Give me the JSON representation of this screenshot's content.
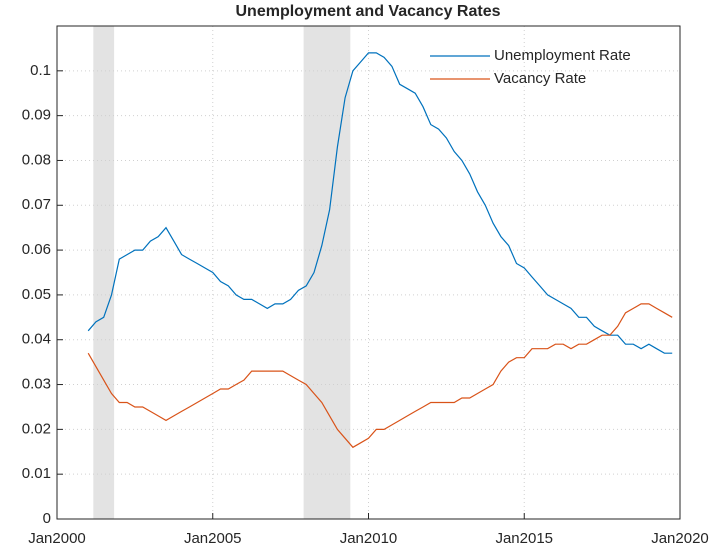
{
  "chart_data": {
    "type": "line",
    "title": "Unemployment and Vacancy Rates",
    "x": [
      "2001-01",
      "2001-04",
      "2001-07",
      "2001-10",
      "2002-01",
      "2002-04",
      "2002-07",
      "2002-10",
      "2003-01",
      "2003-04",
      "2003-07",
      "2003-10",
      "2004-01",
      "2004-04",
      "2004-07",
      "2004-10",
      "2005-01",
      "2005-04",
      "2005-07",
      "2005-10",
      "2006-01",
      "2006-04",
      "2006-07",
      "2006-10",
      "2007-01",
      "2007-04",
      "2007-07",
      "2007-10",
      "2008-01",
      "2008-04",
      "2008-07",
      "2008-10",
      "2009-01",
      "2009-04",
      "2009-07",
      "2009-10",
      "2010-01",
      "2010-04",
      "2010-07",
      "2010-10",
      "2011-01",
      "2011-04",
      "2011-07",
      "2011-10",
      "2012-01",
      "2012-04",
      "2012-07",
      "2012-10",
      "2013-01",
      "2013-04",
      "2013-07",
      "2013-10",
      "2014-01",
      "2014-04",
      "2014-07",
      "2014-10",
      "2015-01",
      "2015-04",
      "2015-07",
      "2015-10",
      "2016-01",
      "2016-04",
      "2016-07",
      "2016-10",
      "2017-01",
      "2017-04",
      "2017-07",
      "2017-10",
      "2018-01",
      "2018-04",
      "2018-07",
      "2018-10",
      "2019-01",
      "2019-04",
      "2019-07",
      "2019-10"
    ],
    "series": [
      {
        "name": "Unemployment Rate",
        "color": "#0072bd",
        "values": [
          0.042,
          0.044,
          0.045,
          0.05,
          0.058,
          0.059,
          0.06,
          0.06,
          0.062,
          0.063,
          0.065,
          0.062,
          0.059,
          0.058,
          0.057,
          0.056,
          0.055,
          0.053,
          0.052,
          0.05,
          0.049,
          0.049,
          0.048,
          0.047,
          0.048,
          0.048,
          0.049,
          0.051,
          0.052,
          0.055,
          0.061,
          0.069,
          0.083,
          0.094,
          0.1,
          0.102,
          0.104,
          0.104,
          0.103,
          0.101,
          0.097,
          0.096,
          0.095,
          0.092,
          0.088,
          0.087,
          0.085,
          0.082,
          0.08,
          0.077,
          0.073,
          0.07,
          0.066,
          0.063,
          0.061,
          0.057,
          0.056,
          0.054,
          0.052,
          0.05,
          0.049,
          0.048,
          0.047,
          0.045,
          0.045,
          0.043,
          0.042,
          0.041,
          0.041,
          0.039,
          0.039,
          0.038,
          0.039,
          0.038,
          0.037,
          0.037
        ]
      },
      {
        "name": "Vacancy Rate",
        "color": "#d95319",
        "values": [
          0.037,
          0.034,
          0.031,
          0.028,
          0.026,
          0.026,
          0.025,
          0.025,
          0.024,
          0.023,
          0.022,
          0.023,
          0.024,
          0.025,
          0.026,
          0.027,
          0.028,
          0.029,
          0.029,
          0.03,
          0.031,
          0.033,
          0.033,
          0.033,
          0.033,
          0.033,
          0.032,
          0.031,
          0.03,
          0.028,
          0.026,
          0.023,
          0.02,
          0.018,
          0.016,
          0.017,
          0.018,
          0.02,
          0.02,
          0.021,
          0.022,
          0.023,
          0.024,
          0.025,
          0.026,
          0.026,
          0.026,
          0.026,
          0.027,
          0.027,
          0.028,
          0.029,
          0.03,
          0.033,
          0.035,
          0.036,
          0.036,
          0.038,
          0.038,
          0.038,
          0.039,
          0.039,
          0.038,
          0.039,
          0.039,
          0.04,
          0.041,
          0.041,
          0.043,
          0.046,
          0.047,
          0.048,
          0.048,
          0.047,
          0.046,
          0.045
        ]
      }
    ],
    "shaded_periods": [
      [
        "2001-03",
        "2001-11"
      ],
      [
        "2007-12",
        "2009-06"
      ]
    ],
    "shade_color": "#e3e3e3",
    "xlim": [
      "2000-01",
      "2020-01"
    ],
    "xticks": [
      {
        "value": "2000-01",
        "label": "Jan2000"
      },
      {
        "value": "2005-01",
        "label": "Jan2005"
      },
      {
        "value": "2010-01",
        "label": "Jan2010"
      },
      {
        "value": "2015-01",
        "label": "Jan2015"
      },
      {
        "value": "2020-01",
        "label": "Jan2020"
      }
    ],
    "ylim": [
      0,
      0.11
    ],
    "yticks": [
      0,
      0.01,
      0.02,
      0.03,
      0.04,
      0.05,
      0.06,
      0.07,
      0.08,
      0.09,
      0.1
    ],
    "grid": true,
    "legend": "northeast"
  }
}
